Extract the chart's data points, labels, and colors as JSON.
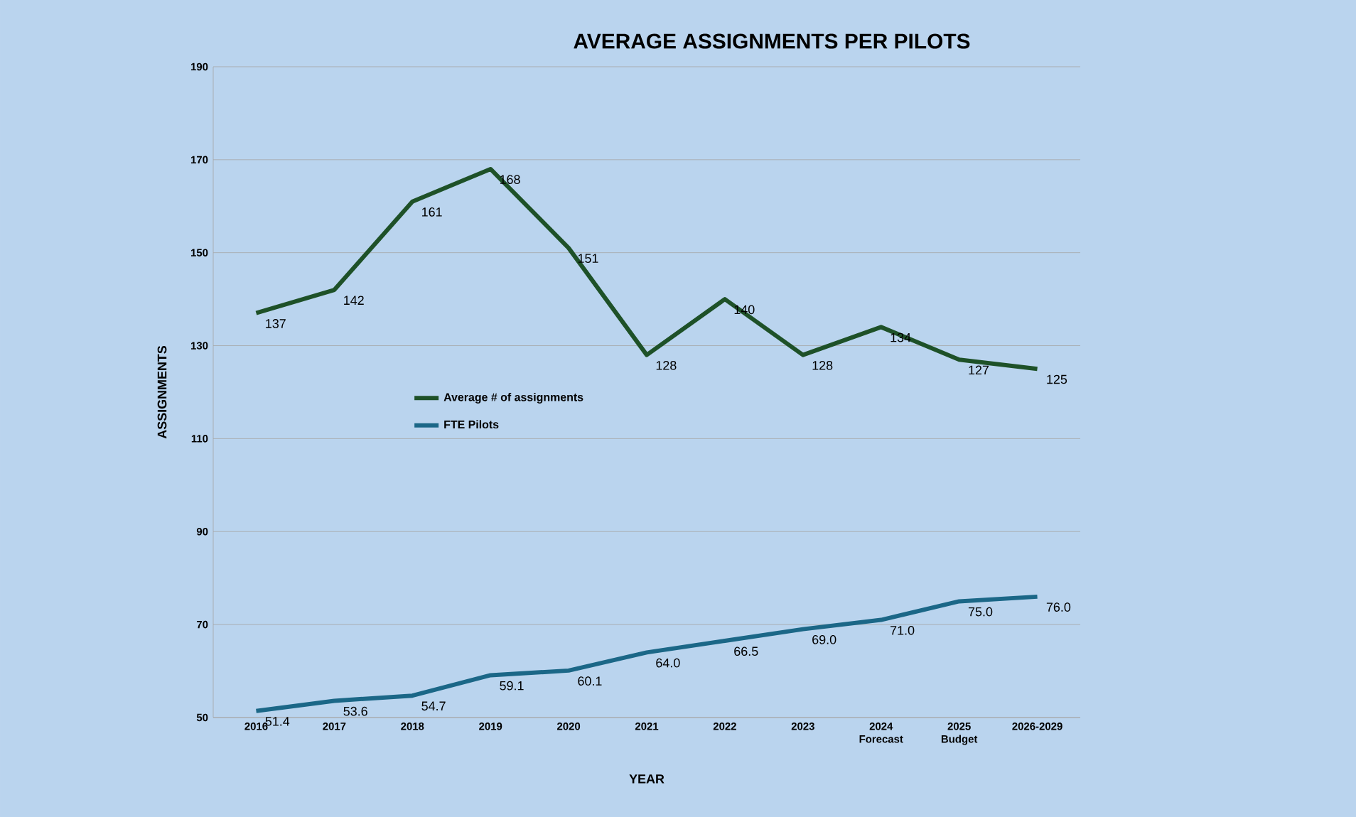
{
  "chart_data": {
    "type": "line",
    "title": "AVERAGE ASSIGNMENTS PER PILOTS",
    "xlabel": "YEAR",
    "ylabel": "ASSIGNMENTS",
    "categories": [
      "2016",
      "2017",
      "2018",
      "2019",
      "2020",
      "2021",
      "2022",
      "2023",
      "2024 Forecast",
      "2025 Budget",
      "2026-2029"
    ],
    "series": [
      {
        "name": "Average # of assignments",
        "color": "#1e5128",
        "values": [
          137,
          142,
          161,
          168,
          151,
          128,
          140,
          128,
          134,
          127,
          125
        ],
        "value_labels": [
          "137",
          "142",
          "161",
          "168",
          "151",
          "128",
          "140",
          "128",
          "134",
          "127",
          "125"
        ]
      },
      {
        "name": "FTE Pilots",
        "color": "#1b6787",
        "values": [
          51.4,
          53.6,
          54.7,
          59.1,
          60.1,
          64.0,
          66.5,
          69.0,
          71.0,
          75.0,
          76.0
        ],
        "value_labels": [
          "51.4",
          "53.6",
          "54.7",
          "59.1",
          "60.1",
          "64.0",
          "66.5",
          "69.0",
          "71.0",
          "75.0",
          "76.0"
        ]
      }
    ],
    "ylim": [
      50,
      190
    ],
    "yticks": [
      50,
      70,
      90,
      110,
      130,
      150,
      170,
      190
    ],
    "grid": "y",
    "legend": "center",
    "marker": "none",
    "line_style": "solid"
  }
}
